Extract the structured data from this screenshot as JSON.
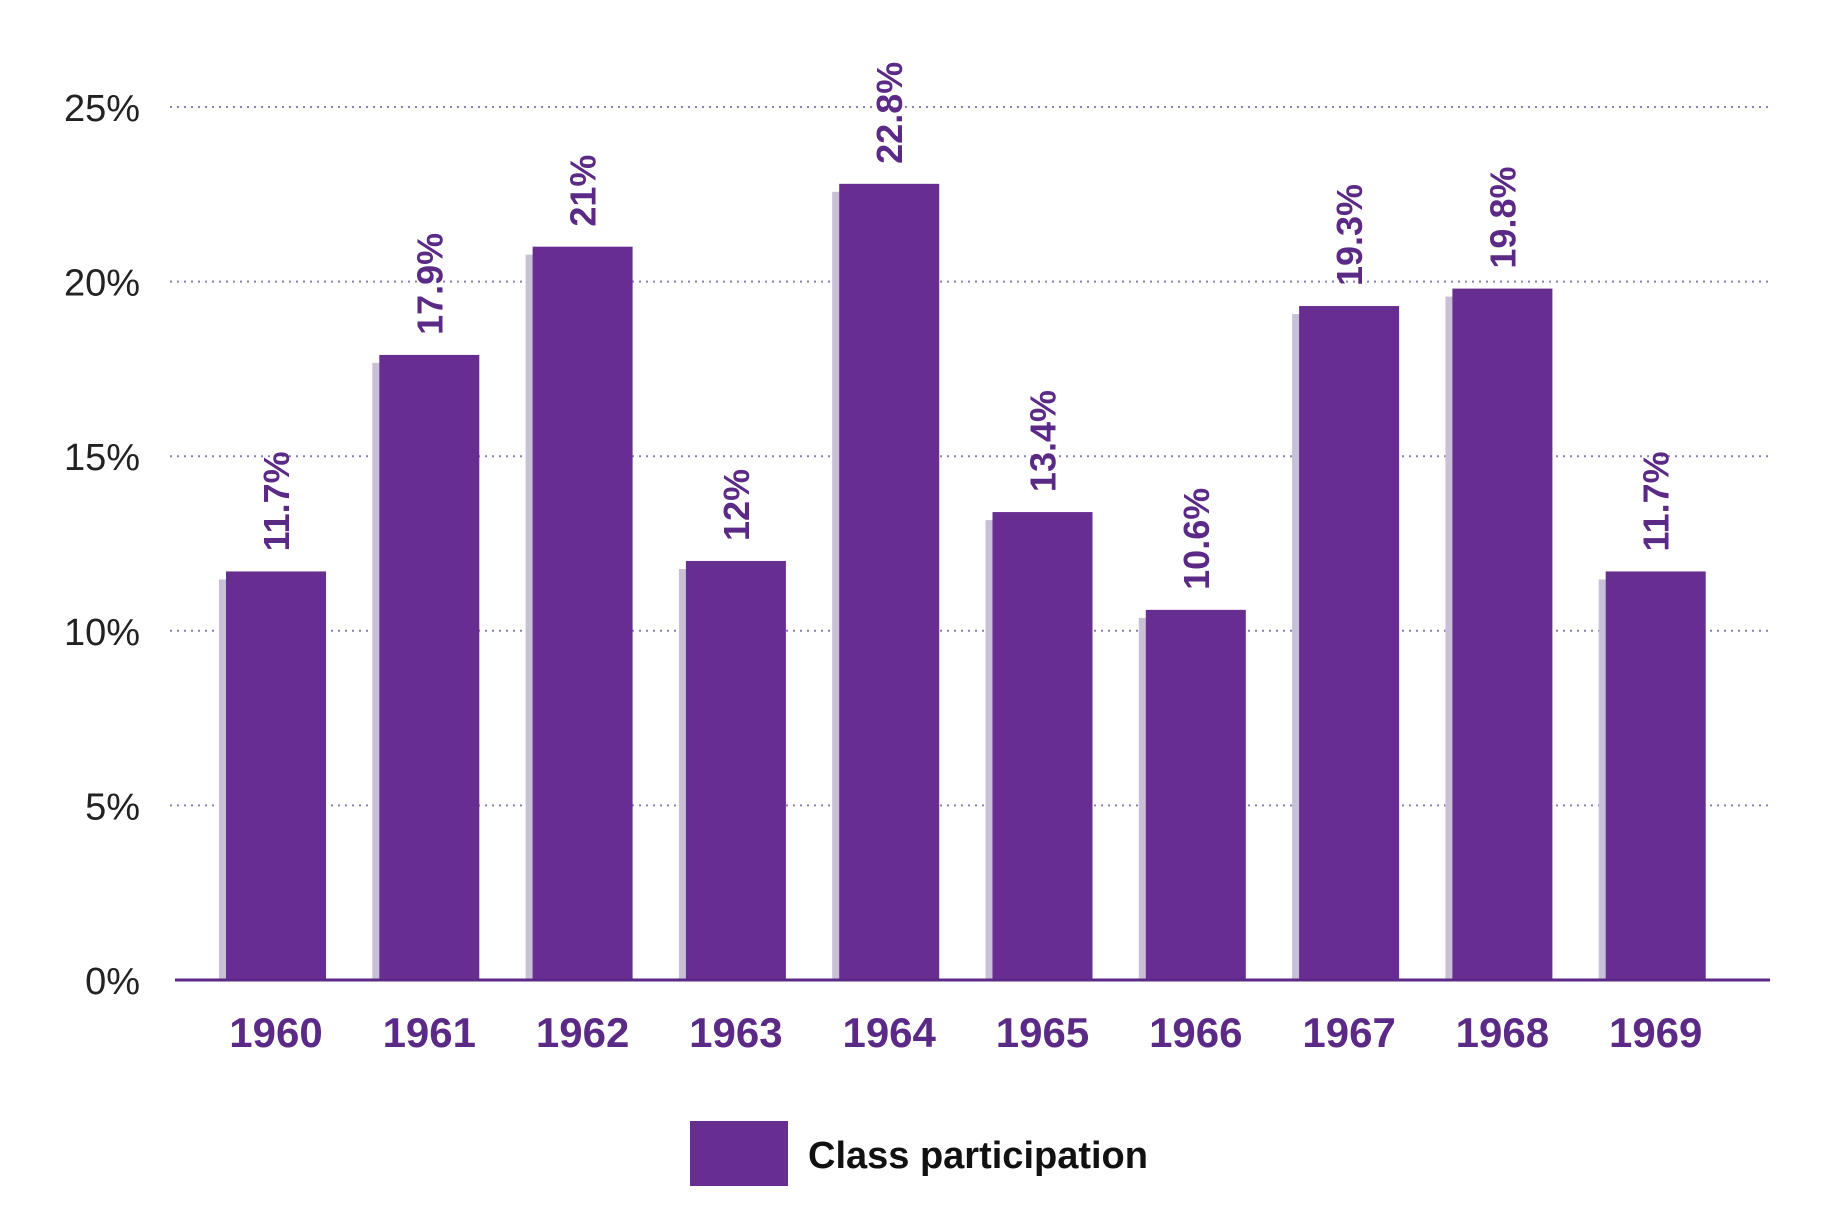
{
  "chart_data": {
    "type": "bar",
    "title": "",
    "xlabel": "",
    "ylabel": "",
    "categories": [
      "1960",
      "1961",
      "1962",
      "1963",
      "1964",
      "1965",
      "1966",
      "1967",
      "1968",
      "1969"
    ],
    "series": [
      {
        "name": "Class participation",
        "values": [
          11.7,
          17.9,
          21,
          12,
          22.8,
          13.4,
          10.6,
          19.3,
          19.8,
          11.7
        ],
        "data_labels": [
          "11.7%",
          "17.9%",
          "21%",
          "12%",
          "22.8%",
          "13.4%",
          "10.6%",
          "19.3%",
          "19.8%",
          "11.7%"
        ]
      }
    ],
    "ylim": [
      0,
      25
    ],
    "yticks": [
      0,
      5,
      10,
      15,
      20,
      25
    ],
    "ytick_labels": [
      "0%",
      "5%",
      "10%",
      "15%",
      "20%",
      "25%"
    ],
    "grid": true,
    "legend_position": "bottom-center"
  },
  "colors": {
    "bar": "#672d91",
    "bar_shadow": "#c9c0d8",
    "text_accent": "#5b2a86",
    "grid": "#8a7fb0",
    "axis": "#5b2a86"
  },
  "legend": {
    "label": "Class participation"
  }
}
